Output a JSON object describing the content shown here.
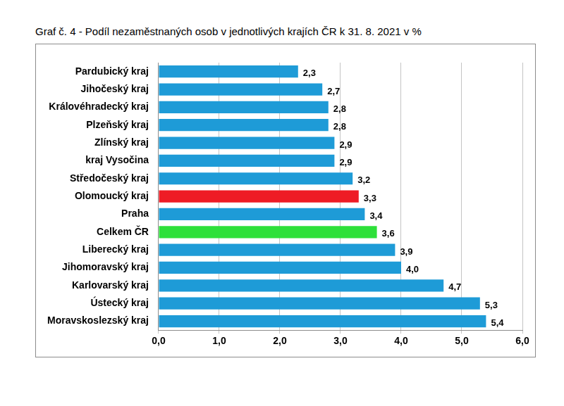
{
  "chart_data": {
    "type": "bar",
    "title": "Graf č. 4 - Podíl nezaměstnaných osob v jednotlivých krajích ČR k 31. 8. 2021 v %",
    "orientation": "horizontal",
    "categories": [
      "Pardubický kraj",
      "Jihočeský kraj",
      "Královéhradecký kraj",
      "Plzeňský kraj",
      "Zlínský kraj",
      "kraj Vysočina",
      "Středočeský kraj",
      "Olomoucký kraj",
      "Praha",
      "Celkem ČR",
      "Liberecký kraj",
      "Jihomoravský kraj",
      "Karlovarský kraj",
      "Ústecký kraj",
      "Moravskoslezský kraj"
    ],
    "values": [
      2.3,
      2.7,
      2.8,
      2.8,
      2.9,
      2.9,
      3.2,
      3.3,
      3.4,
      3.6,
      3.9,
      4.0,
      4.7,
      5.3,
      5.4
    ],
    "value_labels": [
      "2,3",
      "2,7",
      "2,8",
      "2,8",
      "2,9",
      "2,9",
      "3,2",
      "3,3",
      "3,4",
      "3,6",
      "3,9",
      "4,0",
      "4,7",
      "5,3",
      "5,4"
    ],
    "colors": [
      "#1e9bd7",
      "#1e9bd7",
      "#1e9bd7",
      "#1e9bd7",
      "#1e9bd7",
      "#1e9bd7",
      "#1e9bd7",
      "#ee1c25",
      "#1e9bd7",
      "#2ee03a",
      "#1e9bd7",
      "#1e9bd7",
      "#1e9bd7",
      "#1e9bd7",
      "#1e9bd7"
    ],
    "xlim": [
      0,
      6
    ],
    "xticks": [
      {
        "value": 0,
        "label": "0,0"
      },
      {
        "value": 1,
        "label": "1,0"
      },
      {
        "value": 2,
        "label": "2,0"
      },
      {
        "value": 3,
        "label": "3,0"
      },
      {
        "value": 4,
        "label": "4,0"
      },
      {
        "value": 5,
        "label": "5,0"
      },
      {
        "value": 6,
        "label": "6,0"
      }
    ],
    "grid": true,
    "data_labels": true
  }
}
